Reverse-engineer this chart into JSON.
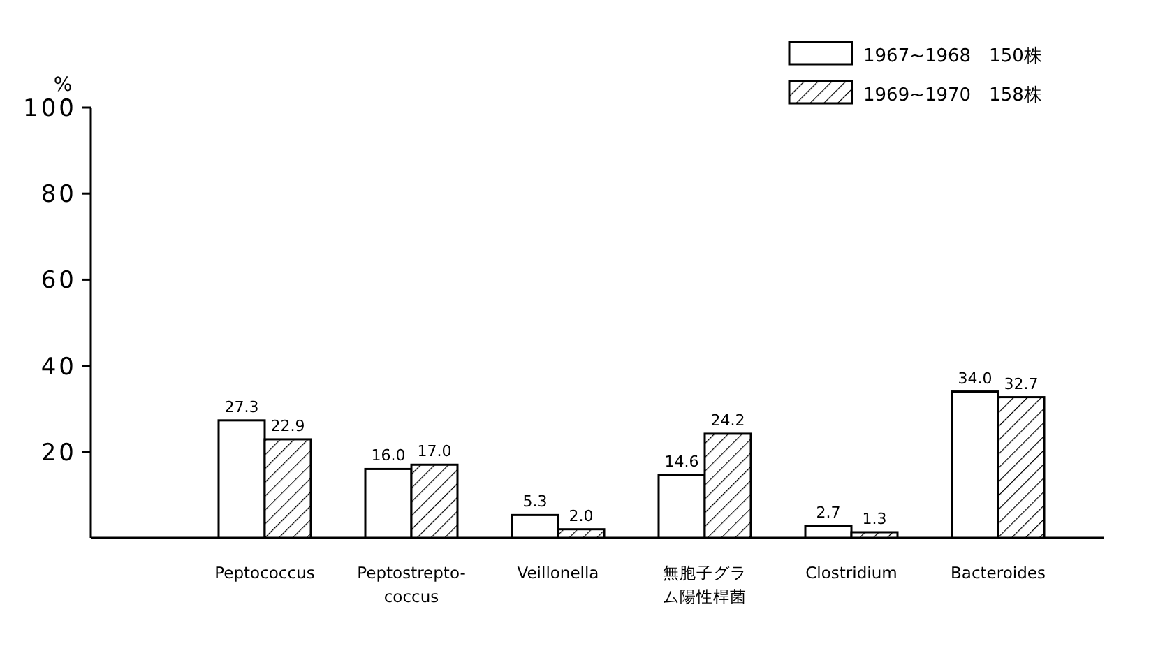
{
  "chart_data": {
    "type": "bar",
    "ylabel": "%",
    "categories": [
      "Peptococcus",
      "Peptostrepto-\ncoccus",
      "Veillonella",
      "無胞子グラム陽性桿菌",
      "Clostridium",
      "Bacteroides"
    ],
    "series": [
      {
        "name": "1967~1968　150株",
        "color": "#ffffff",
        "values": [
          27.3,
          16.0,
          5.3,
          14.6,
          2.7,
          34.0
        ],
        "value_labels": [
          "27.3",
          "16.0",
          "5.3",
          "14.6",
          "2.7",
          "34.0"
        ]
      },
      {
        "name": "1969~1970　158株",
        "color": "#000000",
        "values": [
          22.9,
          17.0,
          2.0,
          24.2,
          1.3,
          32.7
        ],
        "value_labels": [
          "22.9",
          "17.0",
          "2.0",
          "24.2",
          "1.3",
          "32.7"
        ]
      }
    ],
    "ylim": [
      0,
      100
    ],
    "yticks": [
      20,
      40,
      60,
      80,
      100
    ],
    "grid": false,
    "legend": "top right"
  }
}
